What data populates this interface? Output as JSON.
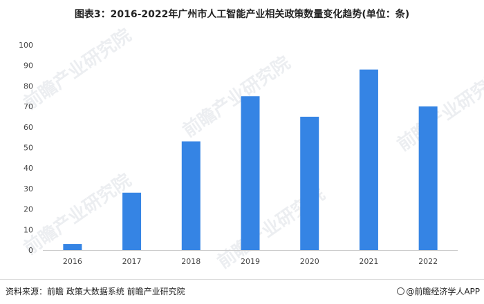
{
  "chart_data": {
    "type": "bar",
    "title": "图表3：2016-2022年广州市人工智能产业相关政策数量变化趋势(单位：条)",
    "categories": [
      "2016",
      "2017",
      "2018",
      "2019",
      "2020",
      "2021",
      "2022"
    ],
    "values": [
      3,
      28,
      53,
      75,
      65,
      88,
      70
    ],
    "xlabel": "",
    "ylabel": "",
    "ylim": [
      0,
      100
    ],
    "yticks": [
      0,
      10,
      20,
      30,
      40,
      50,
      60,
      70,
      80,
      90,
      100
    ],
    "grid": false,
    "bar_color": "#3584e4"
  },
  "source": "资料来源：前瞻 政策大数据系统 前瞻产业研究院",
  "brand": "@前瞻经济学人APP",
  "watermark": "前瞻产业研究院"
}
